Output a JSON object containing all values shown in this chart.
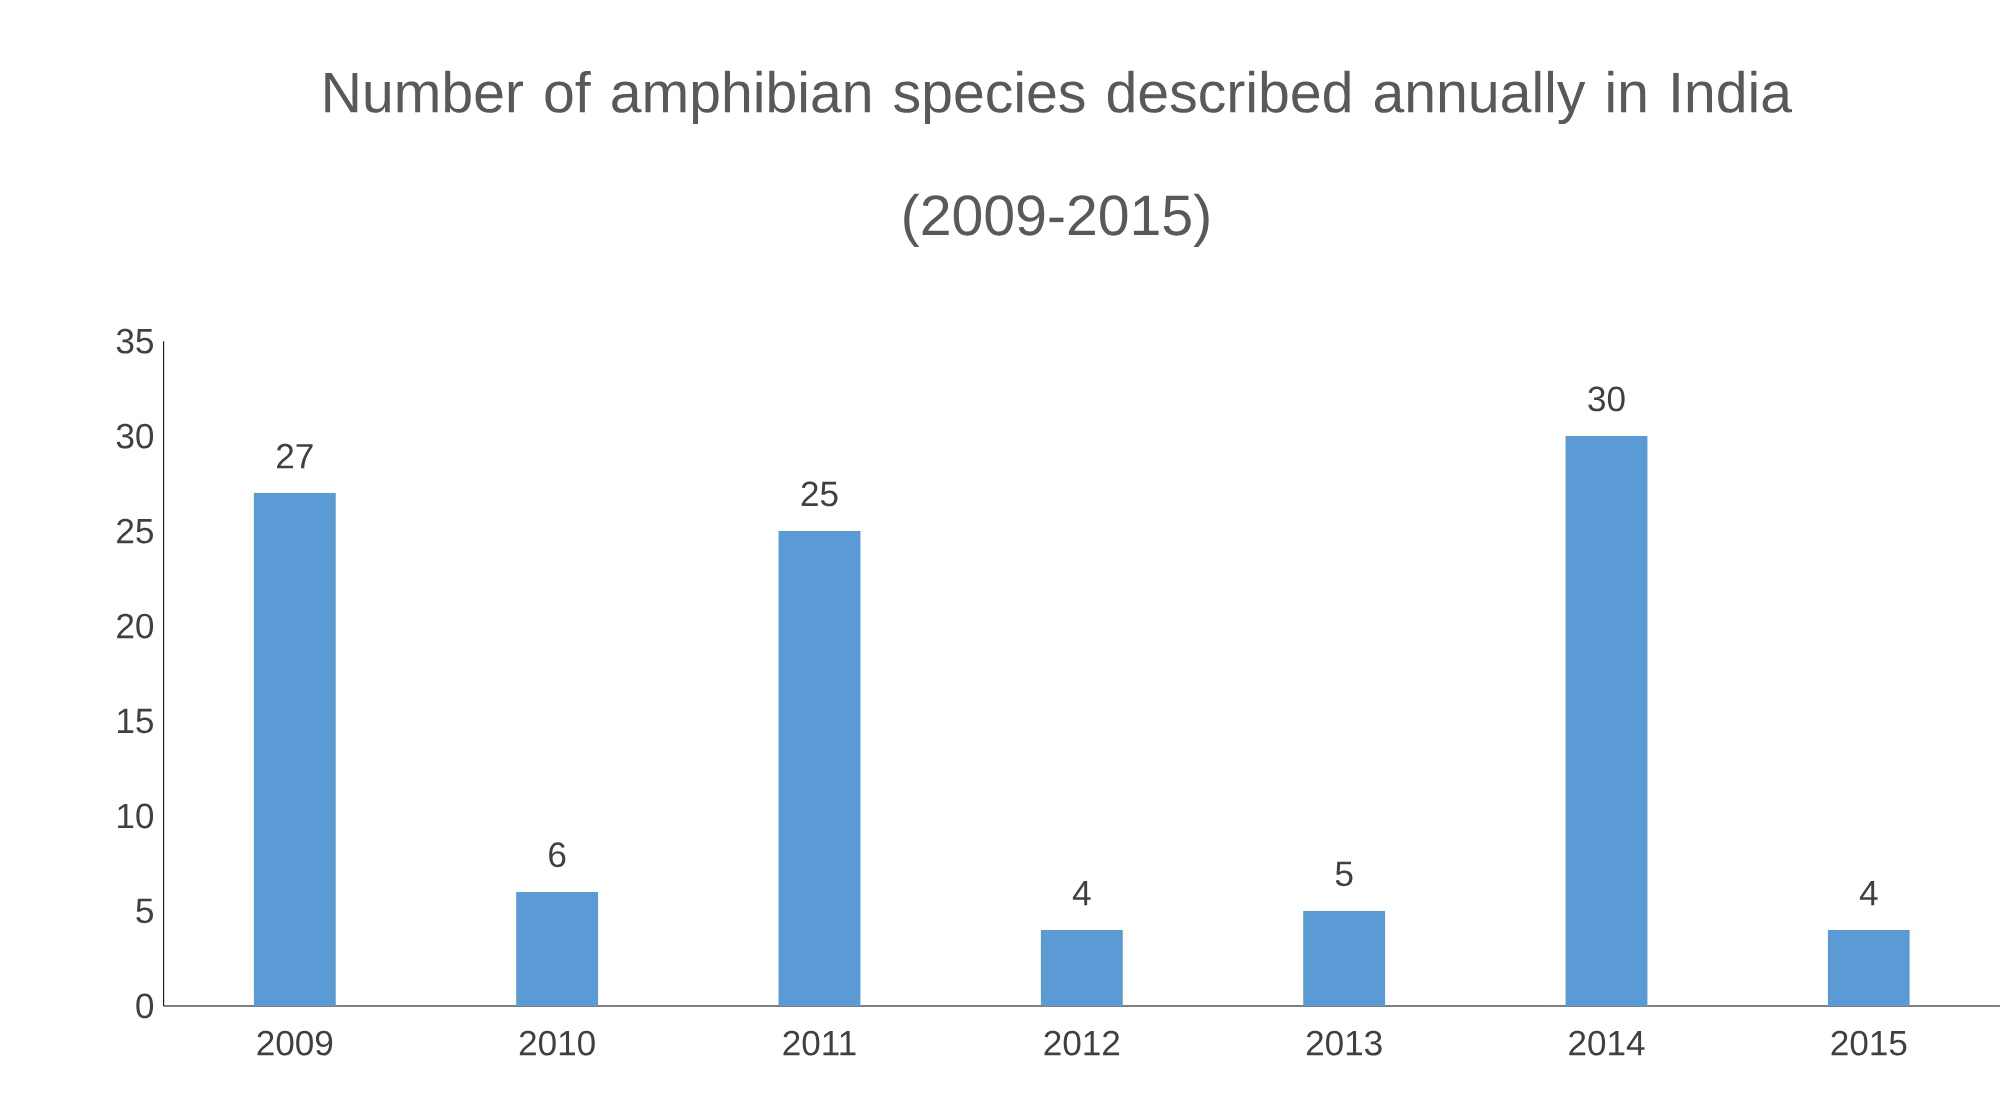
{
  "chart_data": {
    "type": "bar",
    "title": "Number of amphibian species described annually in India",
    "subtitle": "(2009-2015)",
    "categories": [
      "2009",
      "2010",
      "2011",
      "2012",
      "2013",
      "2014",
      "2015"
    ],
    "values": [
      27,
      6,
      25,
      4,
      5,
      30,
      4
    ],
    "color": "#5b9bd5",
    "ylim": [
      0,
      35
    ],
    "yticks": [
      0,
      5,
      10,
      15,
      20,
      25,
      30,
      35
    ],
    "data_labels": true
  }
}
